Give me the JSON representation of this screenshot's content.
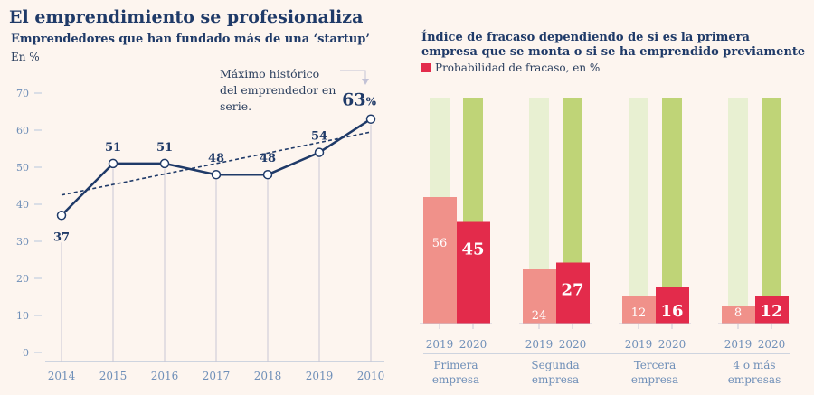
{
  "title": "El emprendimiento se profesionaliza",
  "colors": {
    "navy": "#1f3a68",
    "axis": "#6f8fb8",
    "bar2019": "#f0918a",
    "bar2020": "#e32b4b",
    "bg2019": "#e8f0d2",
    "bg2020": "#bfd477"
  },
  "chart_data": [
    {
      "type": "line",
      "title": "Emprendedores que han fundado más de una ‘startup’",
      "ylabel": "En %",
      "x": [
        "2014",
        "2015",
        "2016",
        "2017",
        "2018",
        "2019",
        "2010"
      ],
      "y": [
        37,
        51,
        51,
        48,
        48,
        54,
        63
      ],
      "labels": [
        "37",
        "51",
        "51",
        "48",
        "48",
        "54",
        "63"
      ],
      "highlight_suffix": "%",
      "yticks": [
        0,
        10,
        20,
        30,
        40,
        50,
        60,
        70
      ],
      "ylim": [
        0,
        70
      ],
      "trendline": {
        "style": "dashed",
        "from": 42.5,
        "to": 59.5
      },
      "annotation": "Máximo histórico del emprendedor en serie."
    },
    {
      "type": "bar",
      "title": "Índice de fracaso dependiendo de si es la primera empresa que se monta o si se ha emprendido previamente",
      "legend": "Probabilidad de fracaso, en %",
      "categories": [
        "Primera empresa",
        "Segunda empresa",
        "Tercera empresa",
        "4 o más empresas"
      ],
      "subcategories": [
        "2019",
        "2020"
      ],
      "series": [
        {
          "name": "2019",
          "values": [
            56,
            24,
            12,
            8
          ]
        },
        {
          "name": "2020",
          "values": [
            45,
            27,
            16,
            12
          ]
        }
      ],
      "background_total": 100,
      "ylim": [
        0,
        100
      ]
    }
  ]
}
